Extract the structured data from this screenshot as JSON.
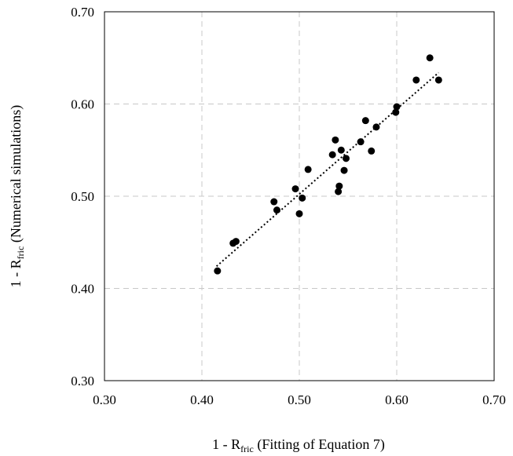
{
  "chart_data": {
    "type": "scatter",
    "xlabel": {
      "pre": "1 - R",
      "sub": "fric",
      "post": " (Fitting  of Equation 7)"
    },
    "ylabel": {
      "pre": "1 - R",
      "sub": "fric",
      "post": " (Numerical simulations)"
    },
    "xlim": [
      0.3,
      0.7
    ],
    "ylim": [
      0.3,
      0.7
    ],
    "xticks": [
      "0.30",
      "0.40",
      "0.50",
      "0.60",
      "0.70"
    ],
    "yticks": [
      "0.30",
      "0.40",
      "0.50",
      "0.60",
      "0.70"
    ],
    "grid": true,
    "grid_style": "dashed",
    "trendline": {
      "style": "dotted",
      "x": [
        0.415,
        0.643
      ],
      "y": [
        0.424,
        0.634
      ]
    },
    "colors": {
      "points": "#000000",
      "grid": "#c8c8c8",
      "axes": "#000000"
    },
    "points": [
      [
        0.416,
        0.419
      ],
      [
        0.432,
        0.449
      ],
      [
        0.435,
        0.451
      ],
      [
        0.474,
        0.494
      ],
      [
        0.477,
        0.485
      ],
      [
        0.496,
        0.508
      ],
      [
        0.5,
        0.481
      ],
      [
        0.503,
        0.498
      ],
      [
        0.509,
        0.529
      ],
      [
        0.534,
        0.545
      ],
      [
        0.537,
        0.561
      ],
      [
        0.54,
        0.505
      ],
      [
        0.541,
        0.511
      ],
      [
        0.543,
        0.55
      ],
      [
        0.546,
        0.528
      ],
      [
        0.548,
        0.541
      ],
      [
        0.563,
        0.559
      ],
      [
        0.568,
        0.582
      ],
      [
        0.574,
        0.549
      ],
      [
        0.579,
        0.575
      ],
      [
        0.599,
        0.591
      ],
      [
        0.6,
        0.597
      ],
      [
        0.62,
        0.626
      ],
      [
        0.634,
        0.65
      ],
      [
        0.643,
        0.626
      ]
    ]
  }
}
